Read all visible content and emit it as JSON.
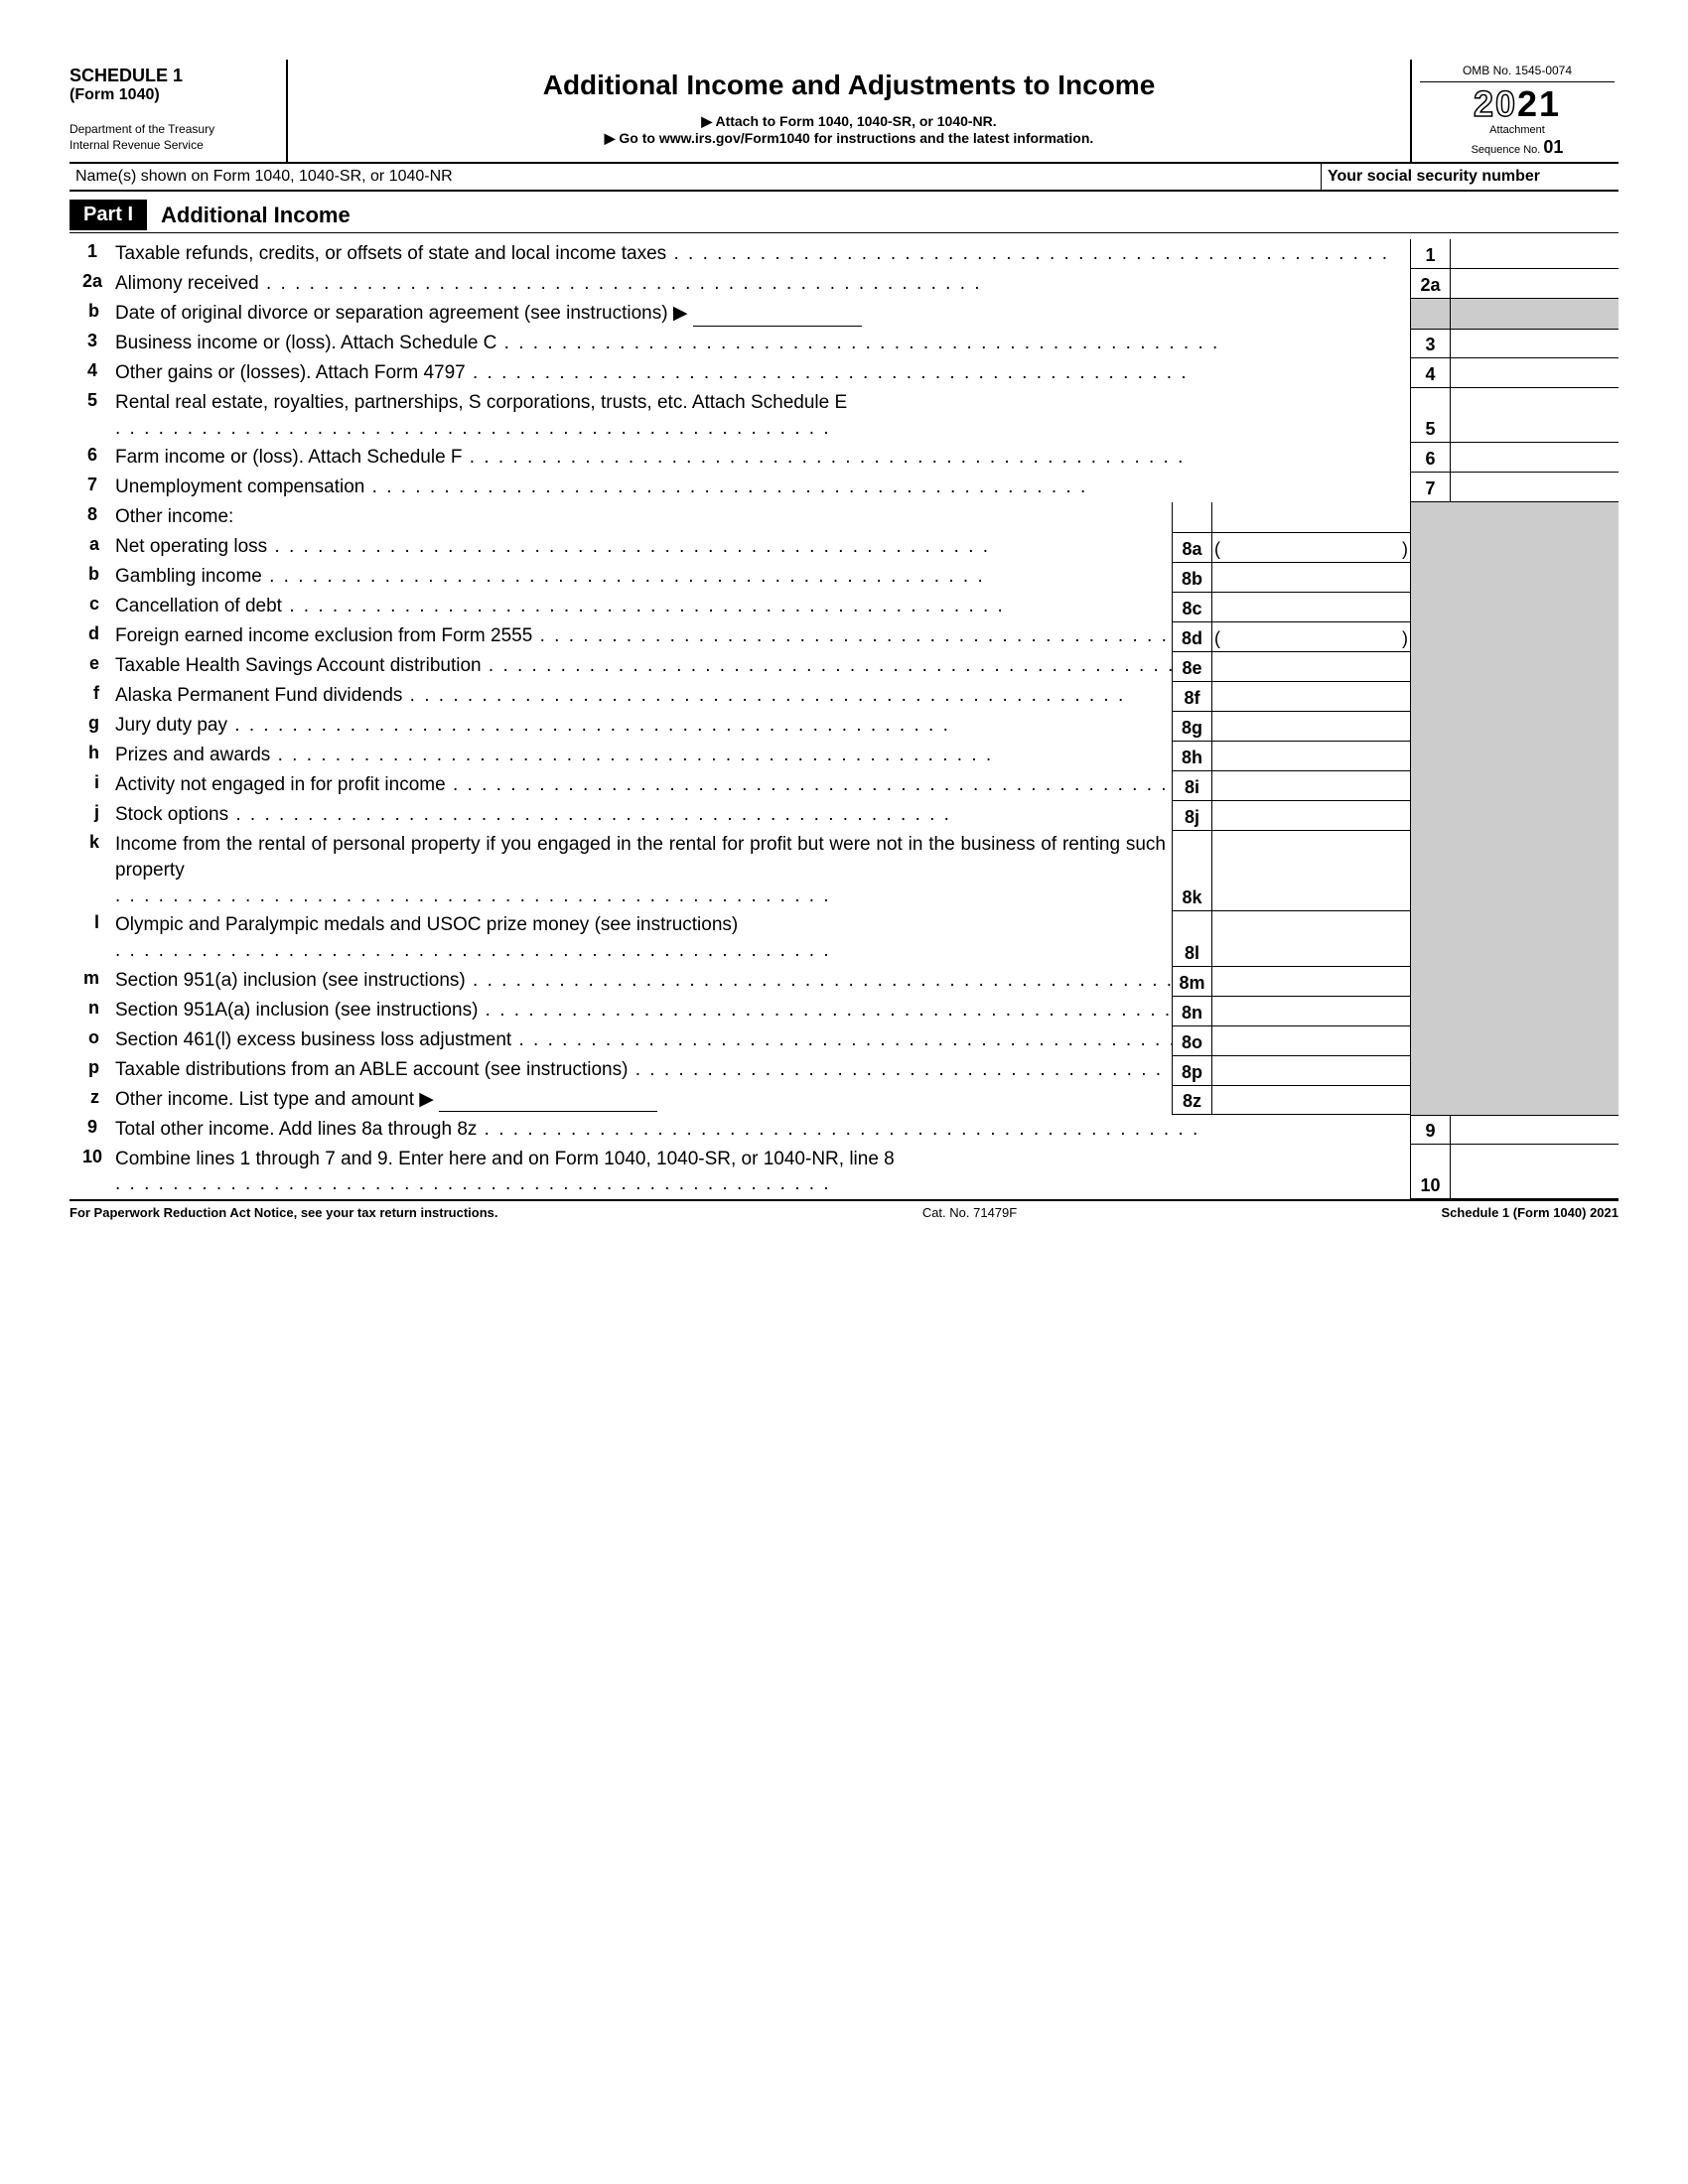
{
  "header": {
    "schedule": "SCHEDULE 1",
    "form": "(Form 1040)",
    "dept1": "Department of the Treasury",
    "dept2": "Internal Revenue Service",
    "title": "Additional Income and Adjustments to Income",
    "attach": "▶ Attach to Form 1040, 1040-SR, or 1040-NR.",
    "goto": "▶ Go to www.irs.gov/Form1040 for instructions and the latest information.",
    "omb": "OMB No. 1545-0074",
    "year_outline": "20",
    "year_solid": "21",
    "attachment": "Attachment",
    "seqLabel": "Sequence No. ",
    "seqNum": "01"
  },
  "nameRow": {
    "label": "Name(s) shown on Form 1040, 1040-SR, or 1040-NR",
    "ssn": "Your social security number"
  },
  "part": {
    "badge": "Part I",
    "title": "Additional Income"
  },
  "lines": {
    "l1": {
      "num": "1",
      "text": "Taxable refunds, credits, or offsets of state and local income taxes",
      "box": "1"
    },
    "l2a": {
      "num": "2a",
      "text": "Alimony received",
      "box": "2a"
    },
    "l2b": {
      "num": "b",
      "text": "Date of original divorce or separation agreement (see instructions) ▶"
    },
    "l3": {
      "num": "3",
      "text": "Business income or (loss). Attach Schedule C",
      "box": "3"
    },
    "l4": {
      "num": "4",
      "text": "Other gains or (losses). Attach Form 4797",
      "box": "4"
    },
    "l5": {
      "num": "5",
      "text": "Rental real estate, royalties, partnerships, S corporations, trusts, etc. Attach Schedule E",
      "box": "5"
    },
    "l6": {
      "num": "6",
      "text": "Farm income or (loss). Attach Schedule F",
      "box": "6"
    },
    "l7": {
      "num": "7",
      "text": "Unemployment compensation",
      "box": "7"
    },
    "l8": {
      "num": "8",
      "text": "Other income:"
    },
    "l8a": {
      "num": "a",
      "text": "Net operating loss",
      "box": "8a"
    },
    "l8b": {
      "num": "b",
      "text": "Gambling income",
      "box": "8b"
    },
    "l8c": {
      "num": "c",
      "text": "Cancellation of debt",
      "box": "8c"
    },
    "l8d": {
      "num": "d",
      "text": "Foreign earned income exclusion from Form 2555",
      "box": "8d"
    },
    "l8e": {
      "num": "e",
      "text": "Taxable Health Savings Account distribution",
      "box": "8e"
    },
    "l8f": {
      "num": "f",
      "text": "Alaska Permanent Fund dividends",
      "box": "8f"
    },
    "l8g": {
      "num": "g",
      "text": "Jury duty pay",
      "box": "8g"
    },
    "l8h": {
      "num": "h",
      "text": "Prizes and awards",
      "box": "8h"
    },
    "l8i": {
      "num": "i",
      "text": "Activity not engaged in for profit income",
      "box": "8i"
    },
    "l8j": {
      "num": "j",
      "text": "Stock options",
      "box": "8j"
    },
    "l8k": {
      "num": "k",
      "text": "Income from the rental of personal property if you engaged in the rental for profit but were not in the business of renting such property",
      "box": "8k"
    },
    "l8l": {
      "num": "l",
      "text": "Olympic and Paralympic medals and USOC prize money (see instructions)",
      "box": "8l"
    },
    "l8m": {
      "num": "m",
      "text": "Section 951(a) inclusion (see instructions)",
      "box": "8m"
    },
    "l8n": {
      "num": "n",
      "text": "Section 951A(a) inclusion (see instructions)",
      "box": "8n"
    },
    "l8o": {
      "num": "o",
      "text": "Section 461(l) excess business loss adjustment",
      "box": "8o"
    },
    "l8p": {
      "num": "p",
      "text": "Taxable distributions from an ABLE account (see instructions)",
      "box": "8p"
    },
    "l8z": {
      "num": "z",
      "text": "Other income. List type and amount ▶",
      "box": "8z"
    },
    "l9": {
      "num": "9",
      "text": "Total other income. Add lines 8a through 8z",
      "box": "9"
    },
    "l10": {
      "num": "10",
      "text": "Combine lines 1 through 7 and 9. Enter here and on Form 1040, 1040-SR, or 1040-NR, line 8",
      "box": "10"
    }
  },
  "footer": {
    "left": "For Paperwork Reduction Act Notice, see your tax return instructions.",
    "center": "Cat. No. 71479F",
    "right": "Schedule 1 (Form 1040) 2021"
  }
}
